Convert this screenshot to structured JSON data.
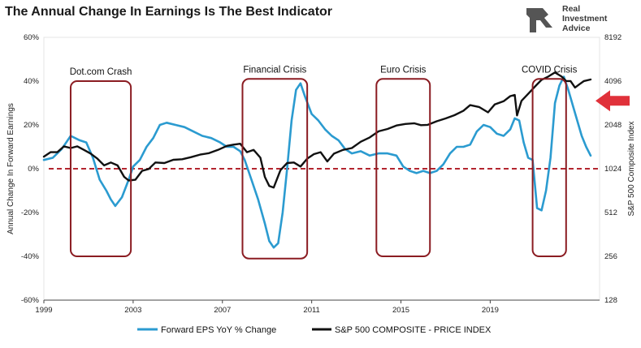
{
  "chart_data": {
    "type": "line",
    "title": "The Annual Change In Earnings Is The Best Indicator",
    "brand": [
      "Real",
      "Investment",
      "Advice"
    ],
    "ylabel_left": "Annual Change In Forward Earnings",
    "ylabel_right": "S&P 500  Composite Index",
    "x_ticks": [
      "1999",
      "2003",
      "2007",
      "2011",
      "2015",
      "2019"
    ],
    "x_tick_values": [
      1999,
      2003,
      2007,
      2011,
      2015,
      2019
    ],
    "xlim": [
      1999,
      2023.9
    ],
    "y_left_ticks": [
      "60%",
      "40%",
      "20%",
      "0%",
      "-20%",
      "-40%",
      "-60%"
    ],
    "y_left_tick_values": [
      60,
      40,
      20,
      0,
      -20,
      -40,
      -60
    ],
    "ylim_left": [
      -60,
      60
    ],
    "y_right_ticks": [
      "8192",
      "4096",
      "2048",
      "1024",
      "512",
      "256",
      "128"
    ],
    "y_right_tick_values": [
      8192,
      4096,
      2048,
      1024,
      512,
      256,
      128
    ],
    "ylim_right": [
      128,
      8192
    ],
    "right_scale": "log2",
    "zero_line": {
      "value": 0,
      "color": "#b3262f",
      "style": "dashed"
    },
    "series": [
      {
        "name": "Forward EPS YoY % Change",
        "axis": "left",
        "color": "#2b9bd0",
        "x": [
          1999.0,
          1999.4,
          1999.8,
          2000.2,
          2000.6,
          2000.9,
          2001.2,
          2001.5,
          2001.8,
          2002.0,
          2002.2,
          2002.5,
          2002.8,
          2003.0,
          2003.3,
          2003.6,
          2003.9,
          2004.2,
          2004.5,
          2004.9,
          2005.3,
          2005.7,
          2006.1,
          2006.5,
          2006.9,
          2007.2,
          2007.5,
          2007.8,
          2008.0,
          2008.3,
          2008.6,
          2008.9,
          2009.1,
          2009.3,
          2009.5,
          2009.7,
          2009.9,
          2010.1,
          2010.3,
          2010.5,
          2010.7,
          2011.0,
          2011.3,
          2011.6,
          2011.9,
          2012.2,
          2012.5,
          2012.8,
          2013.2,
          2013.6,
          2014.0,
          2014.4,
          2014.8,
          2015.1,
          2015.4,
          2015.7,
          2016.0,
          2016.3,
          2016.6,
          2016.9,
          2017.2,
          2017.5,
          2017.8,
          2018.1,
          2018.4,
          2018.7,
          2019.0,
          2019.3,
          2019.6,
          2019.9,
          2020.1,
          2020.3,
          2020.5,
          2020.7,
          2020.9,
          2021.1,
          2021.3,
          2021.5,
          2021.7,
          2021.9,
          2022.1,
          2022.3,
          2022.5,
          2022.7,
          2022.9,
          2023.1,
          2023.3,
          2023.5
        ],
        "y": [
          4,
          5,
          9,
          15,
          13,
          12,
          5,
          -5,
          -10,
          -14,
          -17,
          -13,
          -5,
          1,
          4,
          10,
          14,
          20,
          21,
          20,
          19,
          17,
          15,
          14,
          12,
          10,
          10,
          8,
          4,
          -5,
          -14,
          -25,
          -33,
          -36,
          -34,
          -20,
          0,
          22,
          36,
          39,
          33,
          25,
          22,
          18,
          15,
          13,
          9,
          7,
          8,
          6,
          7,
          7,
          6,
          1,
          -1,
          -2,
          -1,
          -2,
          -1,
          2,
          7,
          10,
          10,
          11,
          17,
          20,
          19,
          16,
          15,
          18,
          23,
          22,
          12,
          5,
          4,
          -18,
          -19,
          -10,
          5,
          30,
          38,
          42,
          36,
          29,
          22,
          15,
          10,
          6
        ]
      },
      {
        "name": "S&P 500 COMPOSITE - PRICE INDEX",
        "axis": "right",
        "color": "#111111",
        "x": [
          1999.0,
          1999.3,
          1999.6,
          1999.9,
          2000.2,
          2000.5,
          2000.8,
          2001.1,
          2001.4,
          2001.7,
          2002.0,
          2002.3,
          2002.6,
          2002.8,
          2003.1,
          2003.4,
          2003.7,
          2004.0,
          2004.4,
          2004.8,
          2005.2,
          2005.6,
          2006.0,
          2006.4,
          2006.8,
          2007.2,
          2007.5,
          2007.8,
          2008.1,
          2008.4,
          2008.7,
          2008.9,
          2009.1,
          2009.3,
          2009.6,
          2009.9,
          2010.2,
          2010.5,
          2010.8,
          2011.1,
          2011.4,
          2011.7,
          2012.0,
          2012.4,
          2012.8,
          2013.2,
          2013.6,
          2014.0,
          2014.4,
          2014.8,
          2015.2,
          2015.6,
          2015.9,
          2016.2,
          2016.6,
          2017.0,
          2017.4,
          2017.8,
          2018.1,
          2018.5,
          2018.9,
          2019.2,
          2019.6,
          2019.9,
          2020.1,
          2020.2,
          2020.4,
          2020.7,
          2021.0,
          2021.3,
          2021.6,
          2021.9,
          2022.0,
          2022.2,
          2022.4,
          2022.6,
          2022.8,
          2023.0,
          2023.2,
          2023.5
        ],
        "y": [
          1240,
          1330,
          1330,
          1460,
          1420,
          1460,
          1380,
          1300,
          1200,
          1080,
          1130,
          1080,
          900,
          850,
          860,
          990,
          1020,
          1130,
          1120,
          1180,
          1190,
          1230,
          1280,
          1310,
          1380,
          1470,
          1500,
          1520,
          1330,
          1380,
          1220,
          900,
          780,
          760,
          1000,
          1120,
          1130,
          1060,
          1200,
          1290,
          1330,
          1150,
          1300,
          1380,
          1420,
          1570,
          1680,
          1850,
          1920,
          2030,
          2080,
          2100,
          2040,
          2050,
          2170,
          2270,
          2390,
          2560,
          2800,
          2720,
          2500,
          2830,
          2980,
          3230,
          3290,
          2380,
          3000,
          3350,
          3750,
          4180,
          4400,
          4700,
          4600,
          4400,
          4100,
          4100,
          3700,
          3900,
          4100,
          4200
        ]
      }
    ],
    "crisis_boxes": [
      {
        "label": "Dot.com Crash",
        "x_start": 2000.2,
        "x_end": 2002.9,
        "y_top": 40,
        "y_bottom": -40
      },
      {
        "label": "Financial Crisis",
        "x_start": 2007.9,
        "x_end": 2010.8,
        "y_top": 41,
        "y_bottom": -41
      },
      {
        "label": "Euro Crisis",
        "x_start": 2013.9,
        "x_end": 2016.3,
        "y_top": 41,
        "y_bottom": -40
      },
      {
        "label": "COVID Crisis",
        "x_start": 2020.9,
        "x_end": 2022.4,
        "y_top": 41,
        "y_bottom": -40
      }
    ],
    "arrow": {
      "side": "right",
      "target_value": 0.31,
      "color": "#e0313a"
    },
    "legend_position": "bottom-center"
  }
}
